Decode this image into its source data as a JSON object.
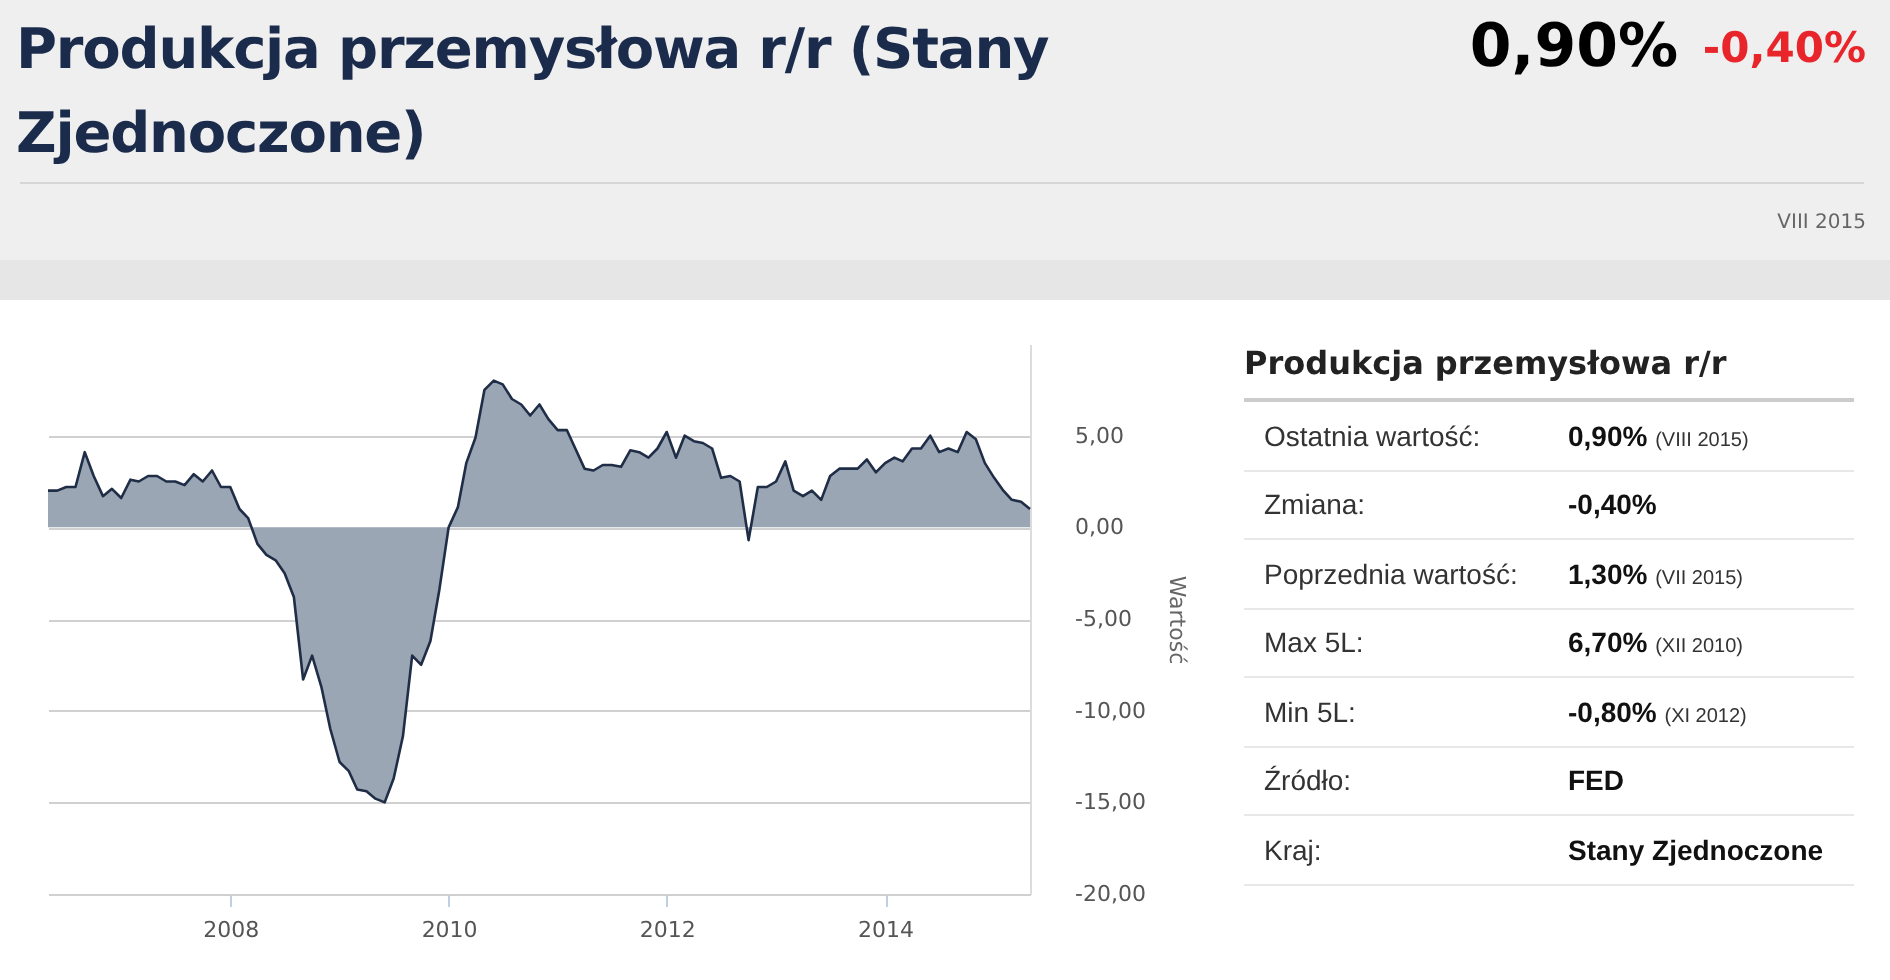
{
  "chart_data": [
    {
      "type": "area",
      "title": "Produkcja przemysłowa r/r (Stany Zjednoczone)",
      "annotations": [
        "0,90%",
        "-0,40%",
        "VIII 2015"
      ],
      "ylabel": "Wartość",
      "x": [
        "2006-05",
        "2006-06",
        "2006-07",
        "2006-08",
        "2006-09",
        "2006-10",
        "2006-11",
        "2006-12",
        "2007-01",
        "2007-02",
        "2007-03",
        "2007-04",
        "2007-05",
        "2007-06",
        "2007-07",
        "2007-08",
        "2007-09",
        "2007-10",
        "2007-11",
        "2007-12",
        "2008-01",
        "2008-02",
        "2008-03",
        "2008-04",
        "2008-05",
        "2008-06",
        "2008-07",
        "2008-08",
        "2008-09",
        "2008-10",
        "2008-11",
        "2008-12",
        "2009-01",
        "2009-02",
        "2009-03",
        "2009-04",
        "2009-05",
        "2009-06",
        "2009-07",
        "2009-08",
        "2009-09",
        "2009-10",
        "2009-11",
        "2009-12",
        "2010-01",
        "2010-02",
        "2010-03",
        "2010-04",
        "2010-05",
        "2010-06",
        "2010-07",
        "2010-08",
        "2010-09",
        "2010-10",
        "2010-11",
        "2010-12",
        "2011-01",
        "2011-02",
        "2011-03",
        "2011-04",
        "2011-05",
        "2011-06",
        "2011-07",
        "2011-08",
        "2011-09",
        "2011-10",
        "2011-11",
        "2011-12",
        "2012-01",
        "2012-02",
        "2012-03",
        "2012-04",
        "2012-05",
        "2012-06",
        "2012-07",
        "2012-08",
        "2012-09",
        "2012-10",
        "2012-11",
        "2012-12",
        "2013-01",
        "2013-02",
        "2013-03",
        "2013-04",
        "2013-05",
        "2013-06",
        "2013-07",
        "2013-08",
        "2013-09",
        "2013-10",
        "2013-11",
        "2013-12",
        "2014-01",
        "2014-02",
        "2014-03",
        "2014-04",
        "2014-05",
        "2014-06",
        "2014-07",
        "2014-08",
        "2014-09",
        "2014-10",
        "2014-11",
        "2014-12",
        "2015-01",
        "2015-02",
        "2015-03",
        "2015-04",
        "2015-05"
      ],
      "series": [
        {
          "color": "#9ba6b4",
          "values": [
            2.0,
            2.0,
            2.2,
            2.2,
            4.1,
            2.8,
            1.7,
            2.1,
            1.6,
            2.6,
            2.5,
            2.8,
            2.8,
            2.5,
            2.5,
            2.3,
            2.9,
            2.5,
            3.1,
            2.2,
            2.2,
            1.0,
            0.5,
            -0.9,
            -1.5,
            -1.8,
            -2.5,
            -3.8,
            -8.3,
            -7.0,
            -8.7,
            -11.0,
            -12.8,
            -13.3,
            -14.3,
            -14.4,
            -14.8,
            -15.0,
            -13.7,
            -11.4,
            -7.0,
            -7.5,
            -6.2,
            -3.4,
            0.0,
            1.1,
            3.5,
            4.9,
            7.5,
            8.0,
            7.8,
            7.0,
            6.7,
            6.1,
            6.7,
            5.9,
            5.3,
            5.3,
            4.3,
            3.2,
            3.1,
            3.4,
            3.4,
            3.3,
            4.2,
            4.1,
            3.8,
            4.3,
            5.2,
            3.8,
            5.0,
            4.7,
            4.6,
            4.3,
            2.7,
            2.8,
            2.5,
            -0.7,
            2.2,
            2.2,
            2.5,
            3.6,
            2.0,
            1.7,
            2.0,
            1.5,
            2.8,
            3.2,
            3.2,
            3.2,
            3.7,
            3.0,
            3.5,
            3.8,
            3.6,
            4.3,
            4.3,
            5.0,
            4.1,
            4.3,
            4.1,
            5.2,
            4.8,
            3.5,
            2.7,
            2.0,
            1.5,
            1.4,
            1.0
          ]
        }
      ],
      "xlim": [
        "2006-05",
        "2015-05"
      ],
      "xticks": [
        "2008",
        "2010",
        "2012",
        "2014"
      ],
      "ylim": [
        -20,
        10
      ],
      "yticks": [
        {
          "value": -20,
          "label": "-20,00"
        },
        {
          "value": -15,
          "label": "-15,00"
        },
        {
          "value": -10,
          "label": "-10,00"
        },
        {
          "value": -5,
          "label": "-5,00"
        },
        {
          "value": 0,
          "label": "0,00"
        },
        {
          "value": 5,
          "label": "5,00"
        }
      ],
      "grid": "y"
    },
    {
      "type": "other",
      "title": "Produkcja przemysłowa r/r",
      "annotations": [
        "Ostatnia wartość:",
        "0,90% (VIII 2015)",
        "Zmiana:",
        "-0,40%",
        "Poprzednia wartość:",
        "1,30% (VII 2015)",
        "Max 5L:",
        "6,70% (XII 2010)",
        "Min 5L:",
        "-0,80% (XI 2012)",
        "Źródło:",
        "FED",
        "Kraj:",
        "Stany Zjednoczone"
      ]
    }
  ]
}
